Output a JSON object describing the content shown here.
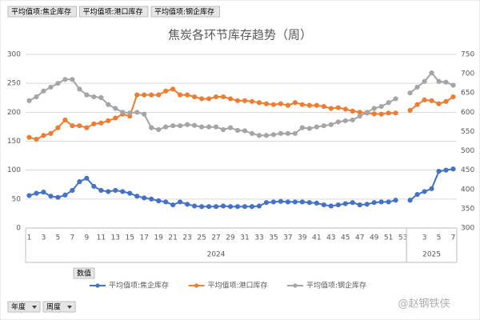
{
  "pivot_buttons": [
    "平均值项:焦企库存",
    "平均值项:港口库存",
    "平均值项:钢企库存"
  ],
  "chart_data": {
    "type": "line",
    "title": "焦炭各环节库存趋势（周）",
    "category_groups": [
      {
        "label": "2024",
        "categories": [
          "1",
          null,
          "3",
          null,
          "5",
          null,
          "7",
          null,
          "9",
          null,
          "11",
          null,
          "13",
          null,
          "15",
          null,
          "17",
          null,
          "19",
          null,
          "21",
          null,
          "23",
          null,
          "25",
          null,
          "27",
          null,
          "29",
          null,
          "31",
          null,
          "33",
          null,
          "35",
          null,
          "37",
          null,
          "39",
          null,
          "41",
          null,
          "43",
          null,
          "45",
          null,
          "47",
          null,
          "49",
          null,
          "51",
          null,
          "53"
        ]
      },
      {
        "label": "2025",
        "categories": [
          null,
          null,
          "3",
          null,
          "5",
          null,
          "7"
        ]
      }
    ],
    "ylim": [
      0,
      300
    ],
    "yticks": [
      0,
      50,
      100,
      150,
      200,
      250,
      300
    ],
    "y2lim": [
      300,
      750
    ],
    "y2ticks": [
      300,
      350,
      400,
      450,
      500,
      550,
      600,
      650,
      700,
      750
    ],
    "grid": true,
    "legend_title": "数值",
    "legend": "bottom",
    "series": [
      {
        "name": "平均值项:焦企库存",
        "color": "#4472c4",
        "axis": "y",
        "values": [
          56,
          60,
          62,
          55,
          53,
          57,
          65,
          80,
          86,
          72,
          65,
          63,
          65,
          63,
          60,
          55,
          52,
          50,
          47,
          45,
          40,
          45,
          41,
          38,
          37,
          37,
          37,
          38,
          37,
          37,
          37,
          37,
          38,
          44,
          45,
          46,
          45,
          45,
          45,
          44,
          43,
          40,
          38,
          40,
          42,
          44,
          40,
          41,
          44,
          45,
          45,
          48,
          null,
          48,
          58,
          63,
          68,
          98,
          100,
          102
        ]
      },
      {
        "name": "平均值项:港口库存",
        "color": "#ed7d31",
        "axis": "y2",
        "values": [
          535,
          530,
          540,
          545,
          560,
          580,
          565,
          565,
          560,
          570,
          572,
          578,
          585,
          595,
          590,
          645,
          645,
          645,
          645,
          655,
          660,
          645,
          645,
          640,
          635,
          635,
          640,
          640,
          635,
          630,
          630,
          628,
          625,
          622,
          620,
          622,
          618,
          625,
          620,
          618,
          618,
          615,
          610,
          612,
          608,
          603,
          600,
          598,
          596,
          595,
          598,
          598,
          null,
          605,
          620,
          632,
          630,
          622,
          628,
          640
        ]
      },
      {
        "name": "平均值项:钢企库存",
        "color": "#a5a5a5",
        "axis": "y2",
        "values": [
          630,
          640,
          655,
          665,
          675,
          685,
          685,
          660,
          645,
          640,
          638,
          620,
          610,
          600,
          598,
          600,
          595,
          560,
          555,
          562,
          565,
          565,
          568,
          566,
          562,
          562,
          562,
          555,
          560,
          553,
          552,
          545,
          540,
          540,
          542,
          545,
          545,
          545,
          560,
          558,
          562,
          565,
          568,
          575,
          578,
          580,
          590,
          600,
          610,
          615,
          625,
          635,
          null,
          650,
          665,
          680,
          702,
          680,
          678,
          670
        ]
      }
    ]
  },
  "filter_buttons": [
    "年度",
    "周度"
  ],
  "watermark": "@赵钢铁侠"
}
